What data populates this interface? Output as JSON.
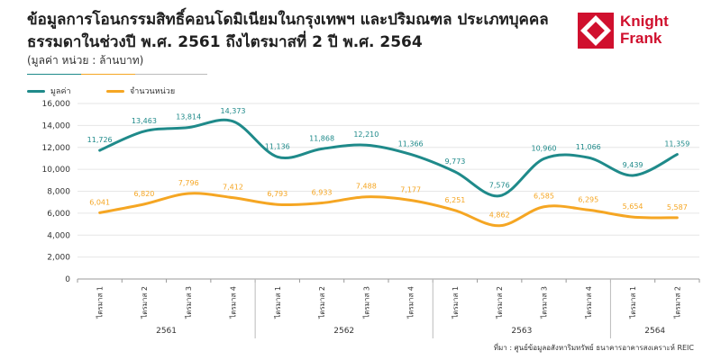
{
  "header": {
    "title": "ข้อมูลการโอนกรรมสิทธิ์คอนโดมิเนียมในกรุงเทพฯ และปริมณฑล ประเภทบุคคลธรรมดาในช่วงปี พ.ศ. 2561 ถึงไตรมาสที่ 2 ปี พ.ศ. 2564",
    "subtitle": "(มูลค่า หน่วย : ล้านบาท)"
  },
  "logo": {
    "line1": "Knight",
    "line2": "Frank",
    "color": "#d0102e"
  },
  "colors": {
    "value_series": "#1f8a8a",
    "units_series": "#f5a623",
    "grid": "#e6e6e6",
    "header_rule_gray": "#bbbbbb"
  },
  "source": "ที่มา : ศูนย์ข้อมูลอสังหาริมทรัพย์ ธนาคารอาคารสงเคราะห์ REIC",
  "chart_data": {
    "type": "line",
    "categories": [
      "ไตรมาส 1",
      "ไตรมาส 2",
      "ไตรมาส 3",
      "ไตรมาส 4",
      "ไตรมาส 1",
      "ไตรมาส 2",
      "ไตรมาส 3",
      "ไตรมาส 4",
      "ไตรมาส 1",
      "ไตรมาส 2",
      "ไตรมาส 3",
      "ไตรมาส 4",
      "ไตรมาส 1",
      "ไตรมาส 2"
    ],
    "years": [
      {
        "label": "2561",
        "start": 0,
        "end": 3
      },
      {
        "label": "2562",
        "start": 4,
        "end": 7
      },
      {
        "label": "2563",
        "start": 8,
        "end": 11
      },
      {
        "label": "2564",
        "start": 12,
        "end": 13
      }
    ],
    "series": [
      {
        "name": "มูลค่า",
        "color": "#1f8a8a",
        "values": [
          11726,
          13463,
          13814,
          14373,
          11136,
          11868,
          12210,
          11366,
          9773,
          7576,
          10960,
          11066,
          9439,
          11359
        ],
        "labels": [
          "11,726",
          "13,463",
          "13,814",
          "14,373",
          "11,136",
          "11,868",
          "12,210",
          "11,366",
          "9,773",
          "7,576",
          "10,960",
          "11,066",
          "9,439",
          "11,359"
        ]
      },
      {
        "name": "จำนวนหน่วย",
        "color": "#f5a623",
        "values": [
          6041,
          6820,
          7796,
          7412,
          6793,
          6933,
          7488,
          7177,
          6251,
          4862,
          6585,
          6295,
          5654,
          5587
        ],
        "labels": [
          "6,041",
          "6,820",
          "7,796",
          "7,412",
          "6,793",
          "6,933",
          "7,488",
          "7,177",
          "6,251",
          "4,862",
          "6,585",
          "6,295",
          "5,654",
          "5,587"
        ]
      }
    ],
    "yticks": [
      0,
      2000,
      4000,
      6000,
      8000,
      10000,
      12000,
      14000,
      16000
    ],
    "ytick_labels": [
      "0",
      "2,000",
      "4,000",
      "6,000",
      "8,000",
      "10,000",
      "12,000",
      "14,000",
      "16,000"
    ],
    "ylim": [
      0,
      16000
    ],
    "grid": true,
    "legend": "top-left"
  }
}
